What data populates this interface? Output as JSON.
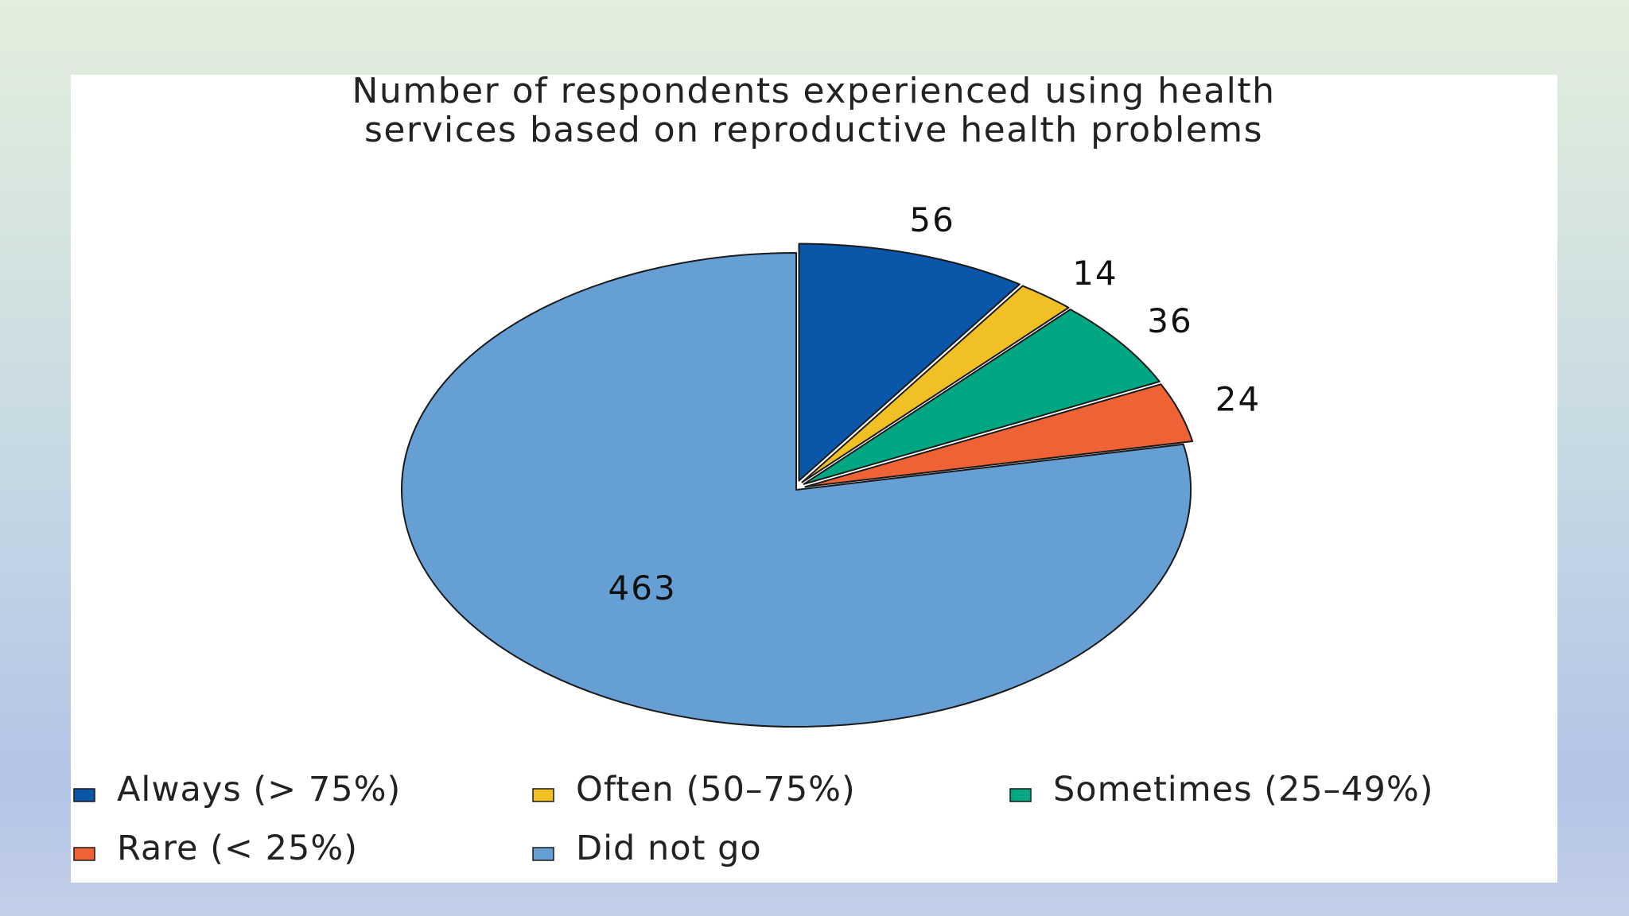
{
  "chart_data": {
    "type": "pie",
    "title_lines": [
      "Number of respondents experienced using health",
      "services based on reproductive health problems"
    ],
    "categories": [
      "Always (> 75%)",
      "Often (50–75%)",
      "Sometimes (25–49%)",
      "Rare (< 25%)",
      "Did not go"
    ],
    "values": [
      56,
      14,
      36,
      24,
      463
    ],
    "colors": [
      "#0a56a8",
      "#f1c025",
      "#00a782",
      "#ee6236",
      "#659fd4"
    ],
    "exploded": [
      true,
      true,
      true,
      true,
      false
    ],
    "legend_position": "bottom"
  }
}
